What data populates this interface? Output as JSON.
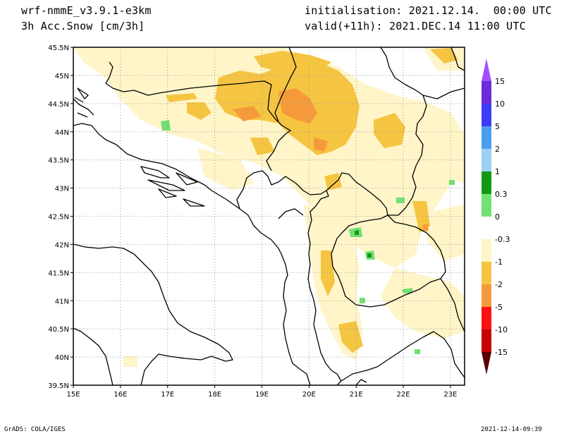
{
  "header": {
    "model": "wrf-nmmE_v3.9.1-e3km",
    "field": "3h Acc.Snow [cm/3h]",
    "init": "initialisation: 2021.12.14.  00:00 UTC",
    "valid": "valid(+11h): 2021.DEC.14 11:00 UTC"
  },
  "footer": {
    "left": "GrADS: COLA/IGES",
    "right": "2021-12-14-09:39"
  },
  "map": {
    "lat_labels": [
      "45.5N",
      "45N",
      "44.5N",
      "44N",
      "43.5N",
      "43N",
      "42.5N",
      "42N",
      "41.5N",
      "41N",
      "40.5N",
      "40N",
      "39.5N"
    ],
    "lon_labels": [
      "15E",
      "16E",
      "17E",
      "18E",
      "19E",
      "20E",
      "21E",
      "22E",
      "23E"
    ],
    "grid": true
  },
  "colorbar": {
    "labels": [
      "15",
      "10",
      "5",
      "2",
      "1",
      "0.3",
      "0",
      "-0.3",
      "-1",
      "-2",
      "-5",
      "-10",
      "-15"
    ],
    "colors": [
      "#6b2bd6",
      "#3c3cf5",
      "#4a9ef0",
      "#9ed0f5",
      "#129a12",
      "#72e072",
      "#ffffff",
      "#fff5c8",
      "#f5c542",
      "#f59a3a",
      "#ff1010",
      "#c40000",
      "#8a0000"
    ],
    "top_tip_color": "#a050ff",
    "bottom_tip_color": "#5a0000"
  }
}
